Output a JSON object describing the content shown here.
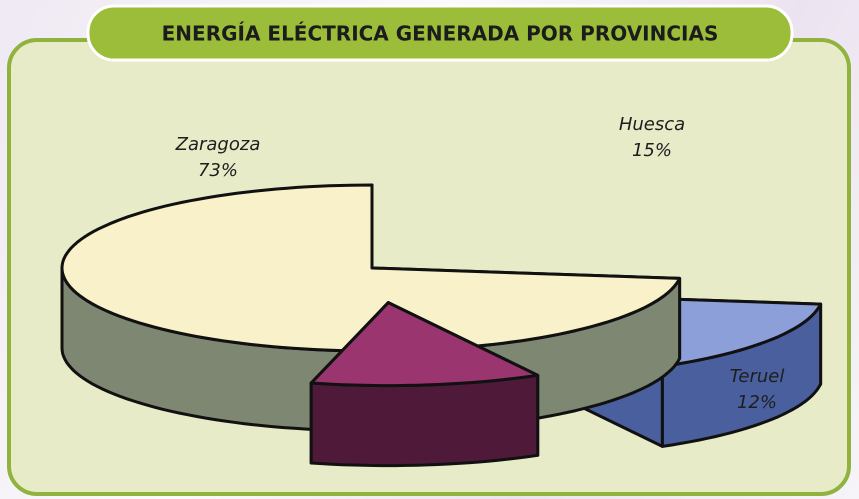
{
  "chart_data": {
    "type": "pie3d",
    "title": "ENERGÍA ELÉCTRICA GENERADA POR PROVINCIAS",
    "categories": [
      "Zaragoza",
      "Huesca",
      "Teruel"
    ],
    "values": [
      73,
      15,
      12
    ],
    "value_labels": [
      "73%",
      "15%",
      "12%"
    ],
    "colors": [
      "#f8f1c9",
      "#8c9fd8",
      "#9a3570"
    ],
    "side_colors": [
      "#7e8772",
      "#4a5f9e",
      "#4f1a3a"
    ]
  }
}
